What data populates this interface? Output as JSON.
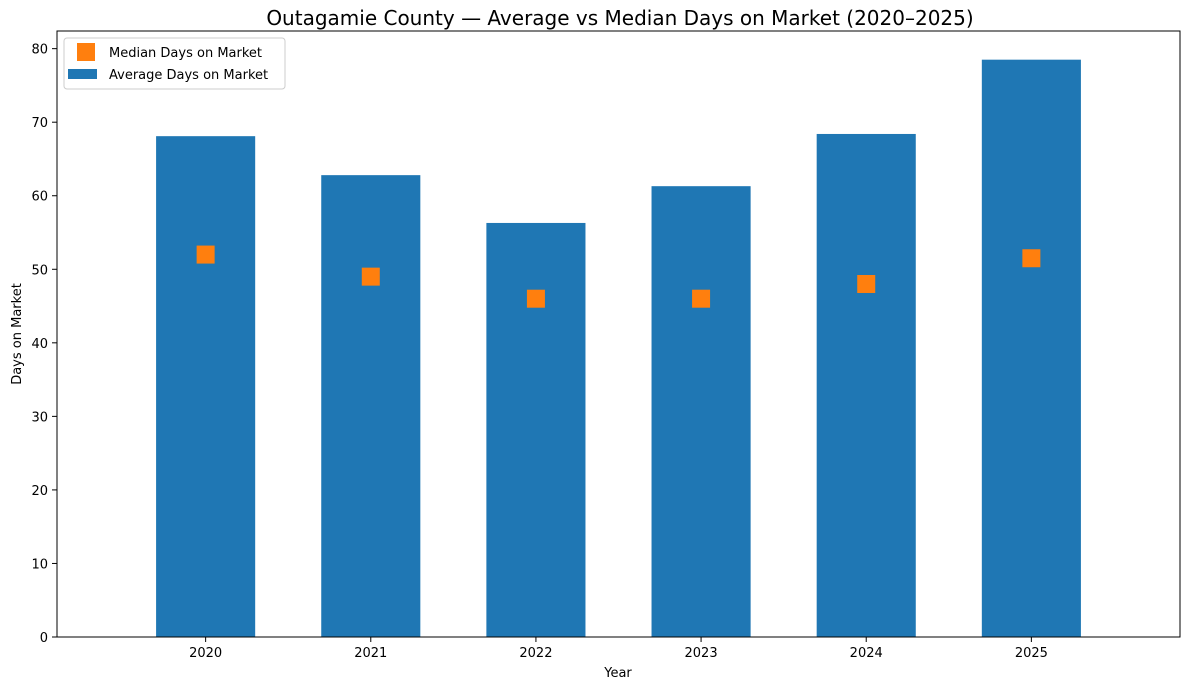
{
  "chart_data": {
    "type": "bar",
    "title": "Outagamie County — Average vs Median Days on Market (2020–2025)",
    "xlabel": "Year",
    "ylabel": "Days on Market",
    "categories": [
      "2020",
      "2021",
      "2022",
      "2023",
      "2024",
      "2025"
    ],
    "ylim": [
      0,
      82.4
    ],
    "yticks": [
      0,
      10,
      20,
      30,
      40,
      50,
      60,
      70,
      80
    ],
    "grid": false,
    "legend_position": "top-left",
    "series": [
      {
        "name": "Average Days on Market",
        "mark": "bar",
        "color": "#1f77b4",
        "values": [
          68.1,
          62.8,
          56.3,
          61.3,
          68.4,
          78.5
        ]
      },
      {
        "name": "Median Days on Market",
        "mark": "square-marker",
        "color": "#ff7f0e",
        "values": [
          52.0,
          49.0,
          46.0,
          46.0,
          48.0,
          51.5
        ]
      }
    ]
  }
}
